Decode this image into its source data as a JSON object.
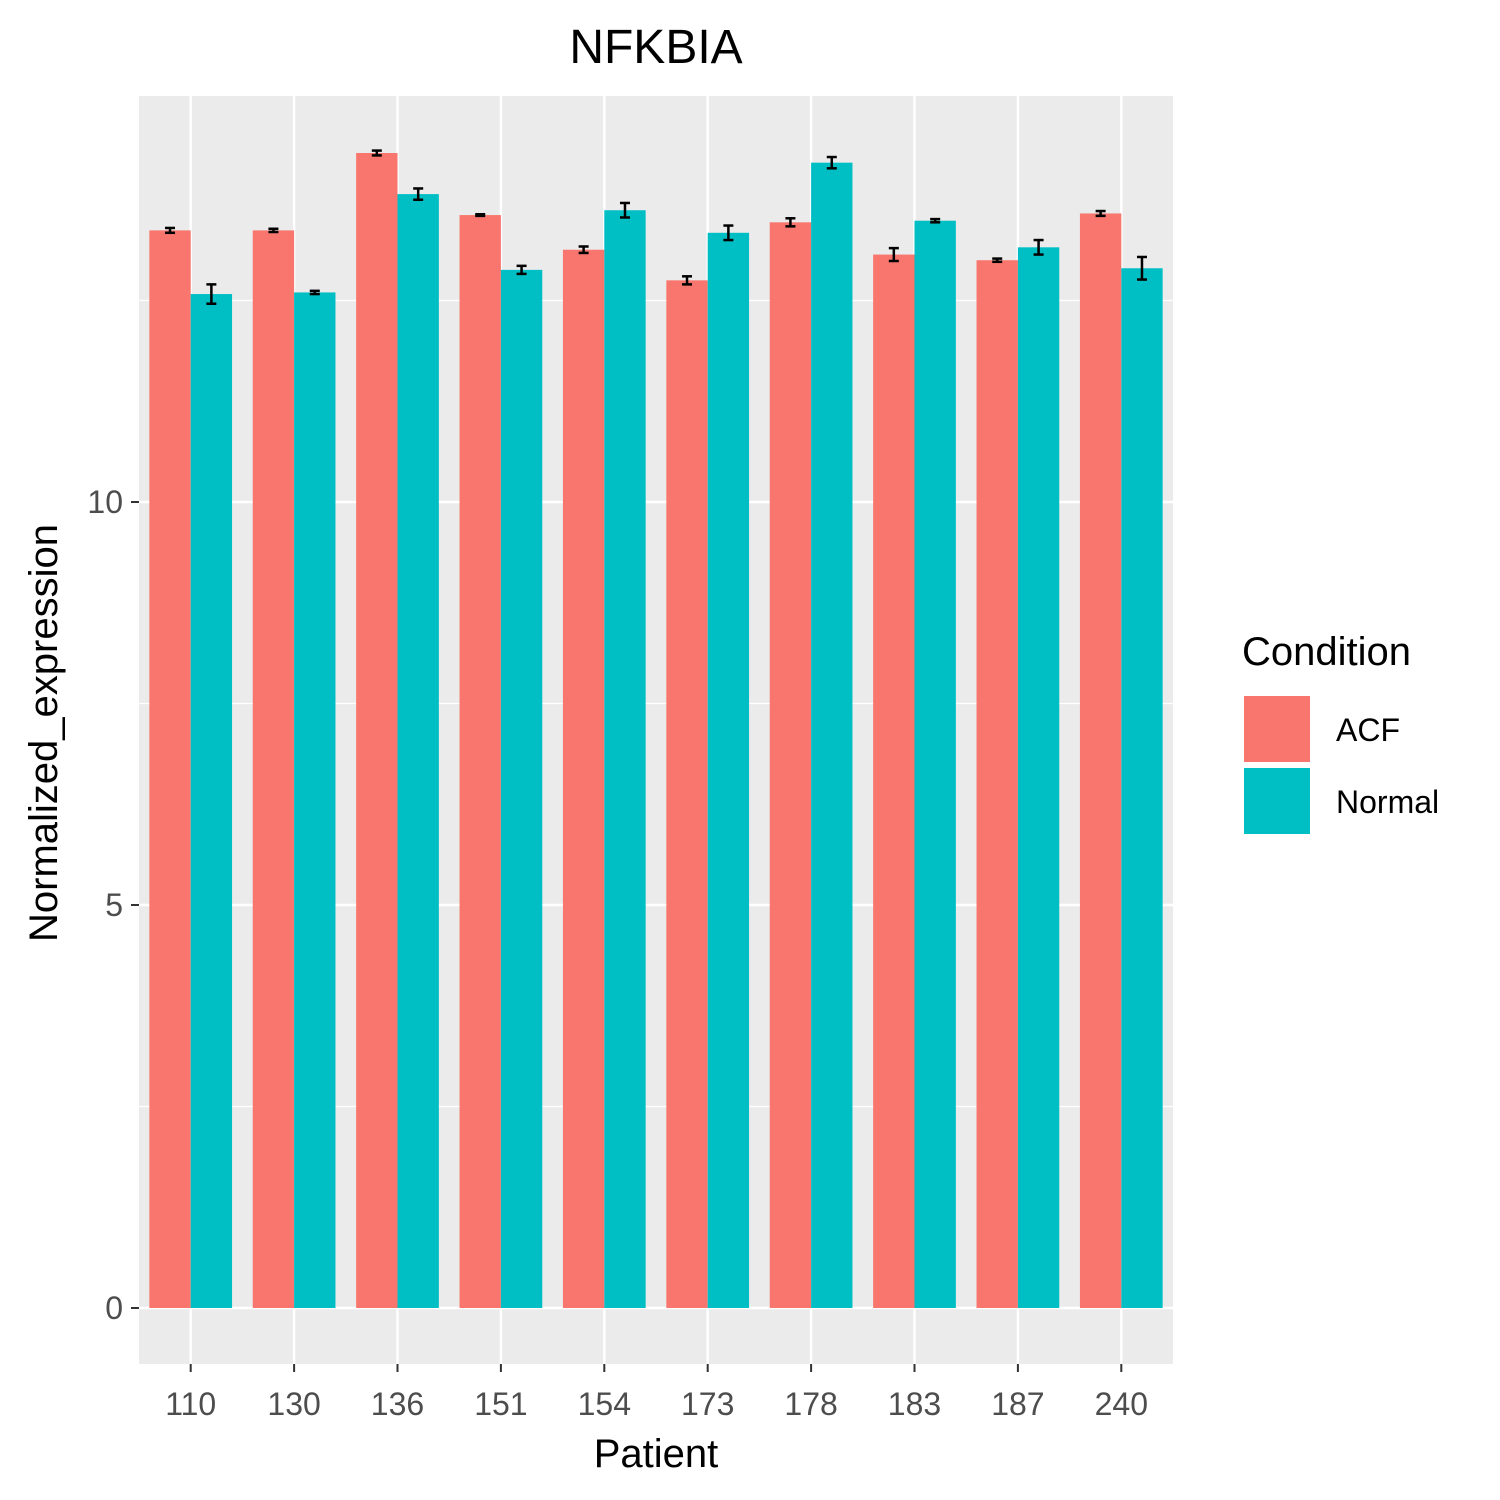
{
  "chart_data": {
    "type": "bar",
    "title": "NFKBIA",
    "xlabel": "Patient",
    "ylabel": "Normalized_expression",
    "categories": [
      "110",
      "130",
      "136",
      "151",
      "154",
      "173",
      "178",
      "183",
      "187",
      "240"
    ],
    "series": [
      {
        "name": "ACF",
        "color": "#F8766D",
        "values": [
          13.37,
          13.37,
          14.33,
          13.56,
          13.13,
          12.75,
          13.47,
          13.07,
          13.0,
          13.58
        ],
        "errors": [
          0.03,
          0.02,
          0.03,
          0.01,
          0.04,
          0.05,
          0.05,
          0.08,
          0.02,
          0.03
        ]
      },
      {
        "name": "Normal",
        "color": "#00BFC4",
        "values": [
          12.58,
          12.6,
          13.82,
          12.88,
          13.62,
          13.34,
          14.21,
          13.49,
          13.16,
          12.9
        ],
        "errors": [
          0.12,
          0.02,
          0.07,
          0.05,
          0.09,
          0.09,
          0.07,
          0.02,
          0.09,
          0.14
        ]
      }
    ],
    "ylim": [
      -0.7,
      15.05
    ],
    "yticks": [
      0,
      5,
      10
    ],
    "grid": true,
    "legend": {
      "title": "Condition",
      "position": "right",
      "entries": [
        "ACF",
        "Normal"
      ]
    },
    "panel_background": "#EBEBEB",
    "grid_color": "#FFFFFF"
  }
}
